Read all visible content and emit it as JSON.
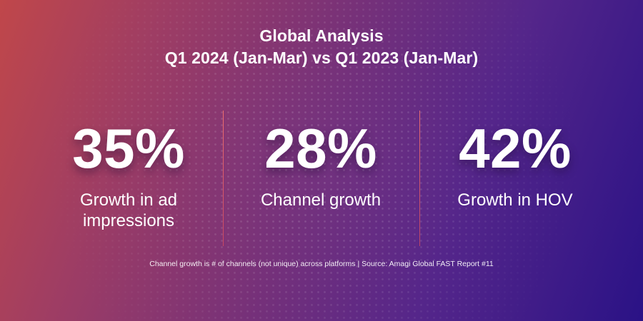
{
  "header": {
    "title_line_1": "Global Analysis",
    "title_line_2": "Q1 2024 (Jan-Mar) vs Q1 2023 (Jan-Mar)"
  },
  "stats": [
    {
      "value": "35%",
      "label": "Growth in ad impressions"
    },
    {
      "value": "28%",
      "label": "Channel growth"
    },
    {
      "value": "42%",
      "label": "Growth in HOV"
    }
  ],
  "footnote": "Channel growth is # of channels (not unique) across platforms | Source: Amagi Global FAST Report #11",
  "colors": {
    "background_start": "#c0474a",
    "background_end": "#2a1286",
    "divider": "#e8606a",
    "text": "#ffffff"
  }
}
